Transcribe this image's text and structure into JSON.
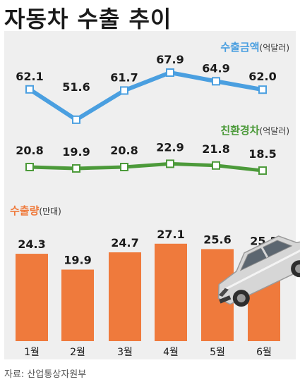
{
  "title": "자동차 수출 추이",
  "source": "자료: 산업통상자원부",
  "colors": {
    "export_line": "#4a9fe0",
    "eco_line": "#4c9a3a",
    "bar": "#ef7a3c",
    "bar_label_accent": "#ef7a3c"
  },
  "chart_data": [
    {
      "type": "line",
      "label": "수출금액",
      "unit": "(억달러)",
      "categories": [
        "1월",
        "2월",
        "3월",
        "4월",
        "5월",
        "6월"
      ],
      "values": [
        62.1,
        51.6,
        61.7,
        67.9,
        64.9,
        62.0
      ]
    },
    {
      "type": "line",
      "label": "친환경차",
      "unit": "(억달러)",
      "categories": [
        "1월",
        "2월",
        "3월",
        "4월",
        "5월",
        "6월"
      ],
      "values": [
        20.8,
        19.9,
        20.8,
        22.9,
        21.8,
        18.5
      ]
    },
    {
      "type": "bar",
      "label": "수출량",
      "unit": "(만대)",
      "categories": [
        "1월",
        "2월",
        "3월",
        "4월",
        "5월",
        "6월"
      ],
      "values": [
        24.3,
        19.9,
        24.7,
        27.1,
        25.6,
        25.2
      ]
    }
  ],
  "illustration": "car-illustration"
}
